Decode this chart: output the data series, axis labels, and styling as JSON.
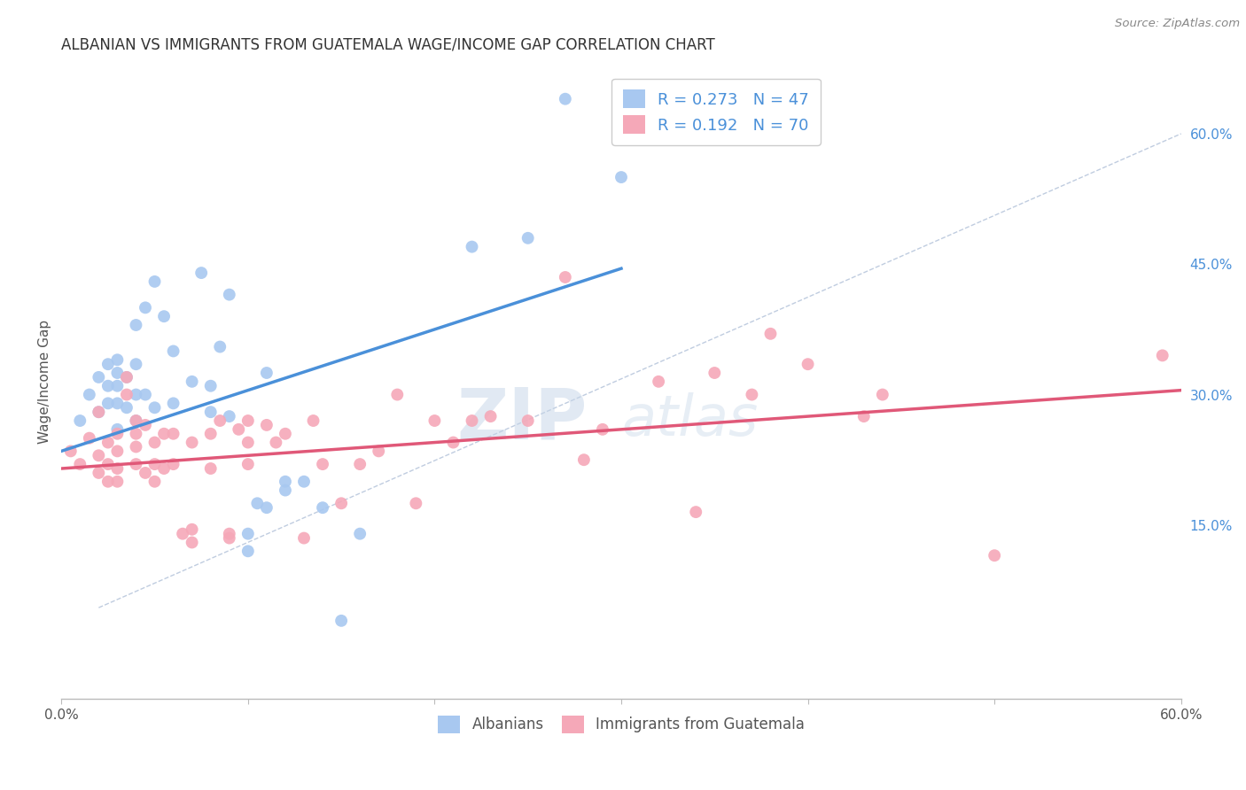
{
  "title": "ALBANIAN VS IMMIGRANTS FROM GUATEMALA WAGE/INCOME GAP CORRELATION CHART",
  "source": "Source: ZipAtlas.com",
  "ylabel": "Wage/Income Gap",
  "xlabel": "",
  "xlim": [
    0.0,
    0.6
  ],
  "ylim": [
    -0.05,
    0.68
  ],
  "xticks": [
    0.0,
    0.1,
    0.2,
    0.3,
    0.4,
    0.5,
    0.6
  ],
  "xticklabels": [
    "0.0%",
    "",
    "",
    "",
    "",
    "",
    "60.0%"
  ],
  "yticks_right": [
    0.15,
    0.3,
    0.45,
    0.6
  ],
  "ytick_labels_right": [
    "15.0%",
    "30.0%",
    "45.0%",
    "60.0%"
  ],
  "legend_label1": "Albanians",
  "legend_label2": "Immigrants from Guatemala",
  "color_blue": "#a8c8f0",
  "color_pink": "#f5a8b8",
  "line_blue": "#4a90d9",
  "line_pink": "#e05878",
  "line_dash_color": "#b0c0d8",
  "blue_scatter_x": [
    0.01,
    0.015,
    0.02,
    0.02,
    0.025,
    0.025,
    0.025,
    0.03,
    0.03,
    0.03,
    0.03,
    0.03,
    0.035,
    0.035,
    0.04,
    0.04,
    0.04,
    0.04,
    0.045,
    0.045,
    0.05,
    0.05,
    0.055,
    0.06,
    0.06,
    0.07,
    0.075,
    0.08,
    0.08,
    0.085,
    0.09,
    0.09,
    0.1,
    0.1,
    0.105,
    0.11,
    0.11,
    0.12,
    0.12,
    0.13,
    0.14,
    0.15,
    0.16,
    0.22,
    0.25,
    0.27,
    0.3
  ],
  "blue_scatter_y": [
    0.27,
    0.3,
    0.28,
    0.32,
    0.29,
    0.31,
    0.335,
    0.26,
    0.29,
    0.31,
    0.325,
    0.34,
    0.285,
    0.32,
    0.27,
    0.3,
    0.335,
    0.38,
    0.3,
    0.4,
    0.285,
    0.43,
    0.39,
    0.29,
    0.35,
    0.315,
    0.44,
    0.28,
    0.31,
    0.355,
    0.275,
    0.415,
    0.12,
    0.14,
    0.175,
    0.17,
    0.325,
    0.2,
    0.19,
    0.2,
    0.17,
    0.04,
    0.14,
    0.47,
    0.48,
    0.64,
    0.55
  ],
  "pink_scatter_x": [
    0.005,
    0.01,
    0.015,
    0.02,
    0.02,
    0.02,
    0.025,
    0.025,
    0.025,
    0.03,
    0.03,
    0.03,
    0.03,
    0.035,
    0.035,
    0.04,
    0.04,
    0.04,
    0.04,
    0.045,
    0.045,
    0.05,
    0.05,
    0.05,
    0.055,
    0.055,
    0.06,
    0.06,
    0.065,
    0.07,
    0.07,
    0.07,
    0.08,
    0.08,
    0.085,
    0.09,
    0.09,
    0.095,
    0.1,
    0.1,
    0.1,
    0.11,
    0.115,
    0.12,
    0.13,
    0.135,
    0.14,
    0.15,
    0.16,
    0.17,
    0.18,
    0.19,
    0.2,
    0.21,
    0.22,
    0.23,
    0.25,
    0.27,
    0.28,
    0.29,
    0.32,
    0.34,
    0.35,
    0.37,
    0.38,
    0.4,
    0.43,
    0.44,
    0.5,
    0.59
  ],
  "pink_scatter_y": [
    0.235,
    0.22,
    0.25,
    0.21,
    0.23,
    0.28,
    0.2,
    0.22,
    0.245,
    0.2,
    0.215,
    0.235,
    0.255,
    0.3,
    0.32,
    0.22,
    0.24,
    0.255,
    0.27,
    0.21,
    0.265,
    0.2,
    0.22,
    0.245,
    0.215,
    0.255,
    0.22,
    0.255,
    0.14,
    0.13,
    0.145,
    0.245,
    0.215,
    0.255,
    0.27,
    0.135,
    0.14,
    0.26,
    0.22,
    0.245,
    0.27,
    0.265,
    0.245,
    0.255,
    0.135,
    0.27,
    0.22,
    0.175,
    0.22,
    0.235,
    0.3,
    0.175,
    0.27,
    0.245,
    0.27,
    0.275,
    0.27,
    0.435,
    0.225,
    0.26,
    0.315,
    0.165,
    0.325,
    0.3,
    0.37,
    0.335,
    0.275,
    0.3,
    0.115,
    0.345
  ],
  "blue_line_x": [
    0.0,
    0.3
  ],
  "blue_line_y": [
    0.235,
    0.445
  ],
  "pink_line_x": [
    0.0,
    0.6
  ],
  "pink_line_y": [
    0.215,
    0.305
  ],
  "dash_line_x": [
    0.02,
    0.6
  ],
  "dash_line_y": [
    0.055,
    0.6
  ],
  "watermark_zip": "ZIP",
  "watermark_atlas": "atlas",
  "background_color": "#ffffff",
  "grid_color": "#dddddd"
}
